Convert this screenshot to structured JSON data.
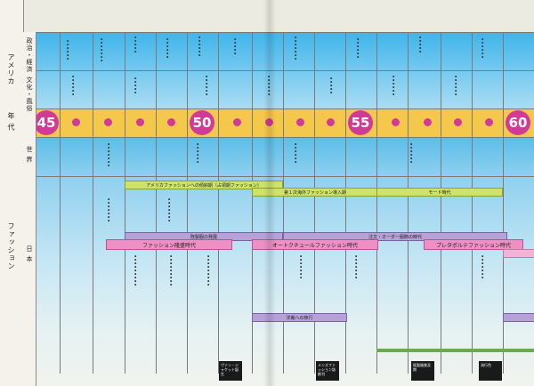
{
  "labels": {
    "america": "アメリカ",
    "politics": "政治・経済",
    "culture": "文化・風俗",
    "era": "年 代",
    "world": "世 界",
    "fashion": "ファッション",
    "japan": "日 本"
  },
  "years": [
    "45",
    "50",
    "55",
    "60"
  ],
  "bars": {
    "american_fashion": "アメリカファッションへの傾斜期（占領期ファッション）",
    "first_wave": "第１次海外ファッション導入期",
    "mode_era": "モード時代",
    "fashion_boom": "ファッション隆盛時代",
    "haute_couture": "オートクチュールファッション時代",
    "pret_a_porter": "プレタポルテファッション時代",
    "ready_made": "既製服の発展",
    "order_made": "注文・オーダー服飾の時代",
    "sewing": "洋裁への移行"
  },
  "captions": [
    "ヴァン・ジャケット誕生",
    "メンズファッション誌創刊",
    "既製服普及期",
    "流行色"
  ]
}
